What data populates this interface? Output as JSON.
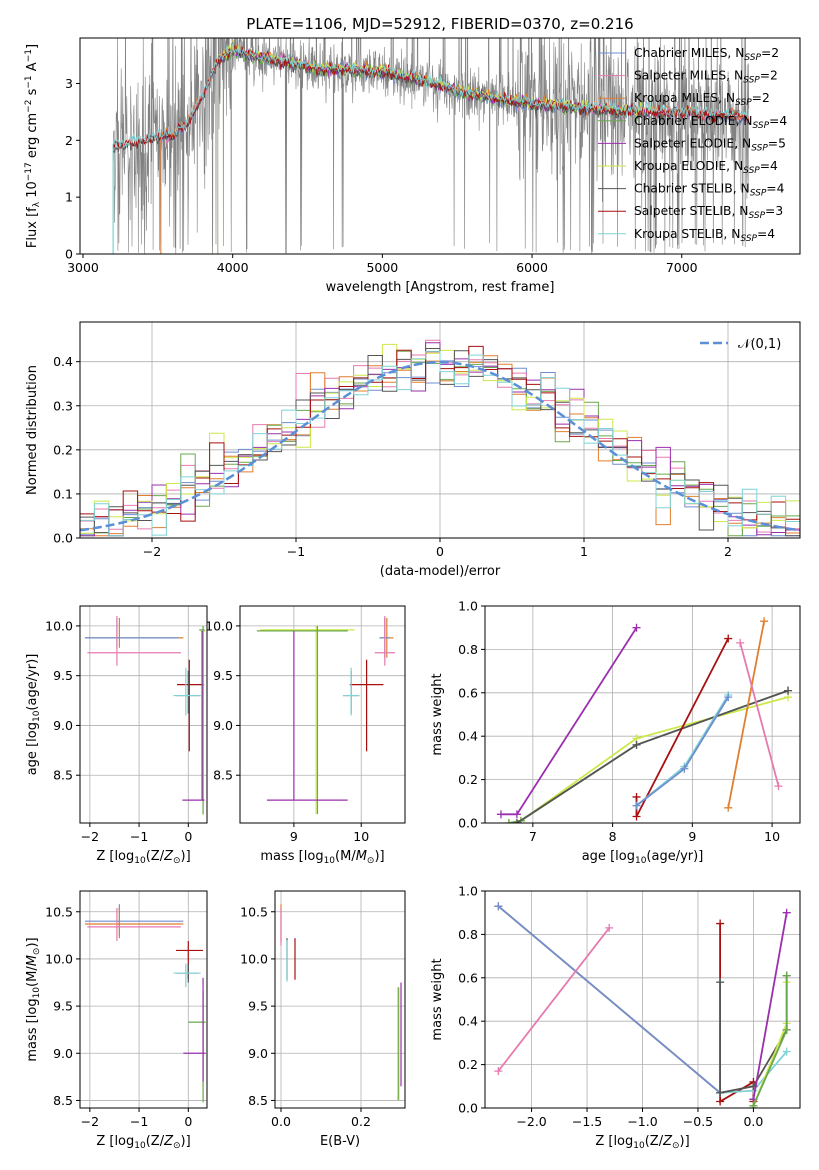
{
  "figure": {
    "title": "PLATE=1106, MJD=52912, FIBERID=0370, z=0.216"
  },
  "colors": {
    "Chabrier MILES": "#6f8fcf",
    "Salpeter MILES": "#e67ab0",
    "Kroupa MILES": "#e07f2e",
    "Chabrier ELODIE": "#6aa84f",
    "Salpeter ELODIE": "#9b2fae",
    "Kroupa ELODIE": "#cce84a",
    "Chabrier STELIB": "#555555",
    "Salpeter STELIB": "#a80f0f",
    "Kroupa STELIB": "#7fd3d6",
    "data": "#808080",
    "gauss": "#5b8fd6"
  },
  "chart_data": [
    {
      "id": "spectrum",
      "type": "line",
      "title": "PLATE=1106, MJD=52912, FIBERID=0370, z=0.216",
      "xlabel": "wavelength [Angstrom, rest frame]",
      "ylabel": "Flux [f_λ 10^-17 erg cm^-2 s^-1 A^-1]",
      "xlim": [
        2980,
        7790
      ],
      "ylim": [
        0,
        3.8
      ],
      "xticks": [
        3000,
        4000,
        5000,
        6000,
        7000
      ],
      "yticks": [
        0,
        1,
        2,
        3
      ],
      "grid": false,
      "legend_position": "top-right",
      "legend": [
        "Chabrier MILES, N_SSP=2",
        "Salpeter MILES, N_SSP=2",
        "Kroupa MILES, N_SSP=2",
        "Chabrier ELODIE, N_SSP=4",
        "Salpeter ELODIE, N_SSP=5",
        "Kroupa ELODIE, N_SSP=4",
        "Chabrier STELIB, N_SSP=4",
        "Salpeter STELIB, N_SSP=3",
        "Kroupa STELIB, N_SSP=4"
      ],
      "series_names": [
        "Chabrier MILES",
        "Salpeter MILES",
        "Kroupa MILES",
        "Chabrier ELODIE",
        "Salpeter ELODIE",
        "Kroupa ELODIE",
        "Chabrier STELIB",
        "Salpeter STELIB",
        "Kroupa STELIB"
      ],
      "model_ranges": [
        [
          3520,
          7450
        ],
        [
          3520,
          7450
        ],
        [
          3520,
          7450
        ],
        [
          3900,
          6800
        ],
        [
          3900,
          6800
        ],
        [
          3900,
          6800
        ],
        [
          3200,
          7450
        ],
        [
          3200,
          7450
        ],
        [
          3200,
          7450
        ]
      ],
      "data_range": [
        3200,
        7450
      ],
      "continuum": {
        "x": [
          3200,
          3400,
          3500,
          3600,
          3700,
          3800,
          3900,
          4000,
          4100,
          4200,
          4400,
          4600,
          4800,
          5000,
          5200,
          5400,
          5600,
          5800,
          6000,
          6200,
          6400,
          6600,
          6800,
          7000,
          7200,
          7450
        ],
        "y": [
          1.9,
          2.0,
          2.05,
          2.1,
          2.3,
          2.8,
          3.4,
          3.6,
          3.5,
          3.45,
          3.35,
          3.25,
          3.25,
          3.2,
          3.1,
          2.95,
          2.8,
          2.72,
          2.65,
          2.6,
          2.55,
          2.52,
          2.5,
          2.5,
          2.45,
          2.4
        ]
      }
    },
    {
      "id": "residuals",
      "type": "step",
      "xlabel": "(data-model)/error",
      "ylabel": "Normed distribution",
      "xlim": [
        -2.5,
        2.5
      ],
      "ylim": [
        0,
        0.49
      ],
      "xticks": [
        -2,
        -1,
        0,
        1,
        2
      ],
      "yticks": [
        0,
        0.1,
        0.2,
        0.3,
        0.4
      ],
      "grid": true,
      "legend_position": "top-right",
      "legend": [
        "𝒩(0,1)"
      ],
      "bin_width": 0.1,
      "hist_series": [
        "Chabrier MILES",
        "Salpeter MILES",
        "Kroupa MILES",
        "Chabrier ELODIE",
        "Salpeter ELODIE",
        "Kroupa ELODIE",
        "Chabrier STELIB",
        "Salpeter STELIB",
        "Kroupa STELIB"
      ]
    },
    {
      "id": "age_vs_Z",
      "type": "errorbar",
      "xlabel": "Z [log10(Z/Z⊙)]",
      "ylabel": "age [log10(age/yr)]",
      "xlim": [
        -2.2,
        0.38
      ],
      "ylim": [
        8.02,
        10.2
      ],
      "xticks": [
        -2,
        -1,
        0
      ],
      "yticks": [
        8.5,
        9.0,
        9.5,
        10.0
      ],
      "grid": true,
      "points": [
        {
          "series": "Kroupa MILES",
          "x": -1.4,
          "xerr": [
            0.7,
            1.3
          ],
          "y": 9.88,
          "yerr": [
            0.1,
            0.2
          ]
        },
        {
          "series": "Chabrier MILES",
          "x": -1.45,
          "xerr": [
            0.65,
            1.25
          ],
          "y": 9.88,
          "yerr": [
            0.1,
            0.2
          ]
        },
        {
          "series": "Salpeter MILES",
          "x": -1.45,
          "xerr": [
            0.6,
            1.3
          ],
          "y": 9.73,
          "yerr": [
            0.13,
            0.37
          ]
        },
        {
          "series": "Salpeter STELIB",
          "x": 0.02,
          "xerr": [
            0.25,
            0.3
          ],
          "y": 9.41,
          "yerr": [
            0.67,
            0.25
          ]
        },
        {
          "series": "Chabrier STELIB",
          "x": 0.0,
          "xerr": [
            0.25,
            0.25
          ],
          "y": 9.3,
          "yerr": [
            0.18,
            0.25
          ]
        },
        {
          "series": "Kroupa STELIB",
          "x": -0.05,
          "xerr": [
            0.25,
            0.3
          ],
          "y": 9.3,
          "yerr": [
            0.2,
            0.28
          ]
        },
        {
          "series": "Kroupa ELODIE",
          "x": 0.3,
          "xerr": [
            0.05,
            0.05
          ],
          "y": 9.95,
          "yerr": [
            1.85,
            0.05
          ]
        },
        {
          "series": "Chabrier ELODIE",
          "x": 0.3,
          "xerr": [
            0.08,
            0.03
          ],
          "y": 9.96,
          "yerr": [
            1.85,
            0.04
          ]
        },
        {
          "series": "Salpeter ELODIE",
          "x": 0.28,
          "xerr": [
            0.4,
            0.05
          ],
          "y": 8.25,
          "yerr": [
            0.0,
            1.7
          ]
        }
      ]
    },
    {
      "id": "age_vs_mass",
      "type": "errorbar",
      "xlabel": "mass [log10(M/M⊙)]",
      "ylabel": "",
      "xlim": [
        8.2,
        10.65
      ],
      "ylim": [
        8.02,
        10.2
      ],
      "xticks": [
        9,
        10
      ],
      "yticks": [
        8.5,
        9.0,
        9.5,
        10.0
      ],
      "grid": true,
      "points": [
        {
          "series": "Kroupa ELODIE",
          "x": 9.33,
          "xerr": [
            0.83,
            0.57
          ],
          "y": 9.96,
          "yerr": [
            1.85,
            0.04
          ]
        },
        {
          "series": "Chabrier ELODIE",
          "x": 9.35,
          "xerr": [
            0.9,
            0.45
          ],
          "y": 9.95,
          "yerr": [
            1.84,
            0.05
          ]
        },
        {
          "series": "Salpeter ELODIE",
          "x": 9.0,
          "xerr": [
            0.4,
            0.8
          ],
          "y": 8.25,
          "yerr": [
            0.0,
            1.7
          ]
        },
        {
          "series": "Kroupa MILES",
          "x": 10.38,
          "xerr": [
            0.1,
            0.1
          ],
          "y": 9.88,
          "yerr": [
            0.2,
            0.2
          ]
        },
        {
          "series": "Chabrier MILES",
          "x": 10.35,
          "xerr": [
            0.08,
            0.08
          ],
          "y": 9.88,
          "yerr": [
            0.2,
            0.2
          ]
        },
        {
          "series": "Salpeter MILES",
          "x": 10.35,
          "xerr": [
            0.15,
            0.15
          ],
          "y": 9.73,
          "yerr": [
            0.13,
            0.37
          ]
        },
        {
          "series": "Salpeter STELIB",
          "x": 10.08,
          "xerr": [
            0.25,
            0.25
          ],
          "y": 9.41,
          "yerr": [
            0.67,
            0.25
          ]
        },
        {
          "series": "Chabrier STELIB",
          "x": 9.85,
          "xerr": [
            0.12,
            0.12
          ],
          "y": 9.3,
          "yerr": [
            0.18,
            0.25
          ]
        },
        {
          "series": "Kroupa STELIB",
          "x": 9.85,
          "xerr": [
            0.12,
            0.12
          ],
          "y": 9.3,
          "yerr": [
            0.2,
            0.28
          ]
        }
      ]
    },
    {
      "id": "massweight_vs_age",
      "type": "line",
      "xlabel": "age [log10(age/yr)]",
      "ylabel": "mass weight",
      "xlim": [
        6.4,
        10.35
      ],
      "ylim": [
        0,
        1.0
      ],
      "xticks": [
        7,
        8,
        9,
        10
      ],
      "yticks": [
        0.0,
        0.2,
        0.4,
        0.6,
        0.8,
        1.0
      ],
      "grid": true,
      "series": [
        {
          "name": "Salpeter ELODIE",
          "x": [
            6.6,
            6.8,
            8.3
          ],
          "y": [
            0.04,
            0.04,
            0.9
          ]
        },
        {
          "name": "Kroupa ELODIE",
          "x": [
            6.7,
            6.85,
            8.3,
            10.2
          ],
          "y": [
            0.0,
            0.01,
            0.39,
            0.58
          ]
        },
        {
          "name": "Chabrier ELODIE",
          "x": [
            6.7,
            6.85,
            8.3,
            10.2
          ],
          "y": [
            0.0,
            0.01,
            0.36,
            0.61
          ]
        },
        {
          "name": "Chabrier STELIB",
          "x": [
            6.8,
            8.3,
            10.2
          ],
          "y": [
            0.0,
            0.36,
            0.61
          ]
        },
        {
          "name": "Salpeter STELIB",
          "x": [
            8.3,
            8.3,
            9.45
          ],
          "y": [
            0.12,
            0.03,
            0.85
          ]
        },
        {
          "name": "Kroupa STELIB",
          "x": [
            8.3,
            8.9,
            9.45
          ],
          "y": [
            0.08,
            0.26,
            0.59
          ]
        },
        {
          "name": "Chabrier MILES",
          "x": [
            8.3,
            8.9,
            9.45
          ],
          "y": [
            0.08,
            0.25,
            0.58
          ]
        },
        {
          "name": "Kroupa MILES",
          "x": [
            9.45,
            9.9
          ],
          "y": [
            0.07,
            0.93
          ]
        },
        {
          "name": "Salpeter MILES",
          "x": [
            9.6,
            10.08
          ],
          "y": [
            0.83,
            0.17
          ]
        }
      ]
    },
    {
      "id": "mass_vs_Z",
      "type": "errorbar",
      "xlabel": "Z [log10(Z/Z⊙)]",
      "ylabel": "mass [log10(M/M⊙)]",
      "xlim": [
        -2.2,
        0.38
      ],
      "ylim": [
        8.42,
        10.72
      ],
      "xticks": [
        -2,
        -1,
        0
      ],
      "yticks": [
        8.5,
        9.0,
        9.5,
        10.0,
        10.5
      ],
      "grid": true,
      "points": [
        {
          "series": "Chabrier MILES",
          "x": -1.4,
          "xerr": [
            0.7,
            1.3
          ],
          "y": 10.4,
          "yerr": [
            0.15,
            0.18
          ]
        },
        {
          "series": "Kroupa MILES",
          "x": -1.4,
          "xerr": [
            0.7,
            1.3
          ],
          "y": 10.37,
          "yerr": [
            0.15,
            0.18
          ]
        },
        {
          "series": "Salpeter MILES",
          "x": -1.45,
          "xerr": [
            0.6,
            1.3
          ],
          "y": 10.34,
          "yerr": [
            0.15,
            0.2
          ]
        },
        {
          "series": "Salpeter STELIB",
          "x": 0.0,
          "xerr": [
            0.25,
            0.3
          ],
          "y": 10.09,
          "yerr": [
            0.3,
            0.1
          ]
        },
        {
          "series": "Chabrier STELIB",
          "x": 0.0,
          "xerr": [
            0.25,
            0.2
          ],
          "y": 9.85,
          "yerr": [
            0.1,
            0.1
          ]
        },
        {
          "series": "Kroupa STELIB",
          "x": -0.05,
          "xerr": [
            0.25,
            0.3
          ],
          "y": 9.85,
          "yerr": [
            0.15,
            0.1
          ]
        },
        {
          "series": "Kroupa ELODIE",
          "x": 0.3,
          "xerr": [
            0.05,
            0.05
          ],
          "y": 9.33,
          "yerr": [
            0.83,
            0.33
          ]
        },
        {
          "series": "Chabrier ELODIE",
          "x": 0.3,
          "xerr": [
            0.3,
            0.05
          ],
          "y": 9.33,
          "yerr": [
            0.85,
            0.33
          ]
        },
        {
          "series": "Salpeter ELODIE",
          "x": 0.3,
          "xerr": [
            0.4,
            0.05
          ],
          "y": 9.0,
          "yerr": [
            0.3,
            0.8
          ]
        }
      ]
    },
    {
      "id": "mass_vs_ebv",
      "type": "errorbar",
      "xlabel": "E(B-V)",
      "ylabel": "",
      "xlim": [
        -0.015,
        0.31
      ],
      "ylim": [
        8.42,
        10.72
      ],
      "xticks": [
        0.0,
        0.2
      ],
      "yticks": [
        8.5,
        9.0,
        9.5,
        10.0,
        10.5
      ],
      "grid": true,
      "points": [
        {
          "series": "Kroupa MILES",
          "x": 0.0,
          "xerr": [
            0,
            0
          ],
          "y": 10.38,
          "yerr": [
            0.2,
            0.2
          ]
        },
        {
          "series": "Salpeter MILES",
          "x": 0.0,
          "xerr": [
            0,
            0
          ],
          "y": 10.34,
          "yerr": [
            0.2,
            0.2
          ]
        },
        {
          "series": "Salpeter STELIB",
          "x": 0.035,
          "xerr": [
            0,
            0
          ],
          "y": 10.0,
          "yerr": [
            0.22,
            0.22
          ]
        },
        {
          "series": "Chabrier STELIB",
          "x": 0.015,
          "xerr": [
            0,
            0
          ],
          "y": 10.0,
          "yerr": [
            0.22,
            0.22
          ]
        },
        {
          "series": "Kroupa STELIB",
          "x": 0.015,
          "xerr": [
            0,
            0
          ],
          "y": 9.98,
          "yerr": [
            0.22,
            0.22
          ]
        },
        {
          "series": "Salpeter ELODIE",
          "x": 0.3,
          "xerr": [
            0,
            0
          ],
          "y": 9.2,
          "yerr": [
            0.55,
            0.55
          ]
        },
        {
          "series": "Kroupa ELODIE",
          "x": 0.295,
          "xerr": [
            0,
            0
          ],
          "y": 9.1,
          "yerr": [
            0.6,
            0.6
          ]
        },
        {
          "series": "Chabrier ELODIE",
          "x": 0.293,
          "xerr": [
            0,
            0
          ],
          "y": 9.1,
          "yerr": [
            0.6,
            0.6
          ]
        }
      ]
    },
    {
      "id": "massweight_vs_Z",
      "type": "line",
      "xlabel": "Z [log10(Z/Z⊙)]",
      "ylabel": "mass weight",
      "xlim": [
        -2.42,
        0.42
      ],
      "ylim": [
        0,
        1.0
      ],
      "xticks": [
        -2.0,
        -1.5,
        -1.0,
        -0.5,
        0.0
      ],
      "yticks": [
        0.0,
        0.2,
        0.4,
        0.6,
        0.8,
        1.0
      ],
      "grid": true,
      "series": [
        {
          "name": "Kroupa MILES",
          "x": [
            -2.3,
            -0.3
          ],
          "y": [
            0.93,
            0.07
          ]
        },
        {
          "name": "Chabrier MILES",
          "x": [
            -2.3,
            -0.3
          ],
          "y": [
            0.93,
            0.07
          ]
        },
        {
          "name": "Salpeter MILES",
          "x": [
            -2.3,
            -1.3
          ],
          "y": [
            0.17,
            0.83
          ]
        },
        {
          "name": "Salpeter STELIB",
          "x": [
            -0.3,
            -0.3,
            0.0,
            0.0
          ],
          "y": [
            0.85,
            0.03,
            0.12,
            0.03
          ]
        },
        {
          "name": "Kroupa STELIB",
          "x": [
            -0.3,
            -0.3,
            0.0,
            0.3
          ],
          "y": [
            0.58,
            0.07,
            0.08,
            0.26
          ]
        },
        {
          "name": "Chabrier STELIB",
          "x": [
            -0.3,
            -0.3,
            0.0,
            0.3,
            0.3
          ],
          "y": [
            0.58,
            0.07,
            0.1,
            0.36,
            0.61
          ]
        },
        {
          "name": "Salpeter ELODIE",
          "x": [
            0.0,
            0.0,
            0.3
          ],
          "y": [
            0.04,
            0.04,
            0.9
          ]
        },
        {
          "name": "Kroupa ELODIE",
          "x": [
            0.0,
            0.0,
            0.3,
            0.3
          ],
          "y": [
            0.0,
            0.01,
            0.39,
            0.58
          ]
        },
        {
          "name": "Chabrier ELODIE",
          "x": [
            0.0,
            0.0,
            0.3,
            0.3
          ],
          "y": [
            0.0,
            0.01,
            0.36,
            0.61
          ]
        }
      ]
    }
  ]
}
